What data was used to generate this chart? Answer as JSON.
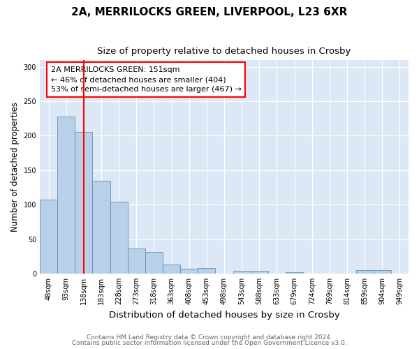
{
  "title": "2A, MERRILOCKS GREEN, LIVERPOOL, L23 6XR",
  "subtitle": "Size of property relative to detached houses in Crosby",
  "xlabel": "Distribution of detached houses by size in Crosby",
  "ylabel": "Number of detached properties",
  "footer1": "Contains HM Land Registry data © Crown copyright and database right 2024.",
  "footer2": "Contains public sector information licensed under the Open Government Licence v3.0.",
  "annotation_line1": "2A MERRILOCKS GREEN: 151sqm",
  "annotation_line2": "← 46% of detached houses are smaller (404)",
  "annotation_line3": "53% of semi-detached houses are larger (467) →",
  "bar_color": "#b8d0e8",
  "bar_edge_color": "#6090b8",
  "red_line_x": 2.0,
  "categories": [
    "48sqm",
    "93sqm",
    "138sqm",
    "183sqm",
    "228sqm",
    "273sqm",
    "318sqm",
    "363sqm",
    "408sqm",
    "453sqm",
    "498sqm",
    "543sqm",
    "588sqm",
    "633sqm",
    "679sqm",
    "724sqm",
    "769sqm",
    "814sqm",
    "859sqm",
    "904sqm",
    "949sqm"
  ],
  "values": [
    107,
    228,
    206,
    135,
    104,
    36,
    31,
    13,
    7,
    8,
    0,
    4,
    4,
    0,
    2,
    0,
    0,
    0,
    5,
    5,
    0
  ],
  "ylim": [
    0,
    310
  ],
  "yticks": [
    0,
    50,
    100,
    150,
    200,
    250,
    300
  ],
  "fig_bg_color": "#ffffff",
  "plot_bg_color": "#dce8f5",
  "grid_color": "#ffffff",
  "title_fontsize": 11,
  "subtitle_fontsize": 9.5,
  "xlabel_fontsize": 9.5,
  "ylabel_fontsize": 8.5,
  "tick_fontsize": 7,
  "annot_fontsize": 8,
  "footer_fontsize": 6.5
}
